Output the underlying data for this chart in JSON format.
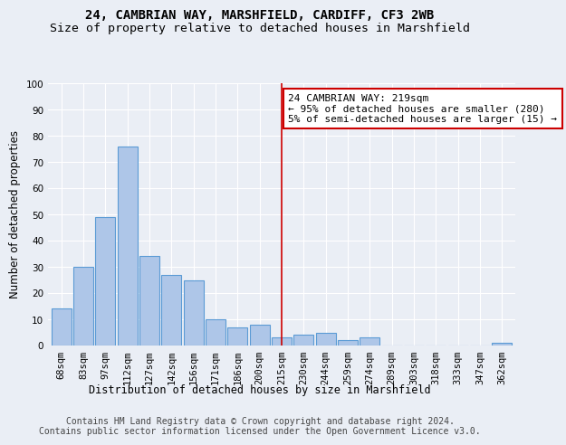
{
  "title": "24, CAMBRIAN WAY, MARSHFIELD, CARDIFF, CF3 2WB",
  "subtitle": "Size of property relative to detached houses in Marshfield",
  "xlabel": "Distribution of detached houses by size in Marshfield",
  "ylabel": "Number of detached properties",
  "categories": [
    "68sqm",
    "83sqm",
    "97sqm",
    "112sqm",
    "127sqm",
    "142sqm",
    "156sqm",
    "171sqm",
    "186sqm",
    "200sqm",
    "215sqm",
    "230sqm",
    "244sqm",
    "259sqm",
    "274sqm",
    "289sqm",
    "303sqm",
    "318sqm",
    "333sqm",
    "347sqm",
    "362sqm"
  ],
  "values": [
    14,
    30,
    49,
    76,
    34,
    27,
    25,
    10,
    7,
    8,
    3,
    4,
    5,
    2,
    3,
    0,
    0,
    0,
    0,
    0,
    1
  ],
  "bar_color": "#aec6e8",
  "bar_edge_color": "#5b9bd5",
  "bar_edge_width": 0.8,
  "marker_bin_index": 10,
  "marker_color": "#cc0000",
  "annotation_text": "24 CAMBRIAN WAY: 219sqm\n← 95% of detached houses are smaller (280)\n5% of semi-detached houses are larger (15) →",
  "annotation_box_color": "#cc0000",
  "ylim": [
    0,
    100
  ],
  "yticks": [
    0,
    10,
    20,
    30,
    40,
    50,
    60,
    70,
    80,
    90,
    100
  ],
  "bg_color": "#eaeef5",
  "plot_bg_color": "#eaeef5",
  "grid_color": "#ffffff",
  "footnote": "Contains HM Land Registry data © Crown copyright and database right 2024.\nContains public sector information licensed under the Open Government Licence v3.0.",
  "title_fontsize": 10,
  "subtitle_fontsize": 9.5,
  "xlabel_fontsize": 8.5,
  "ylabel_fontsize": 8.5,
  "tick_fontsize": 7.5,
  "annot_fontsize": 8,
  "footnote_fontsize": 7
}
